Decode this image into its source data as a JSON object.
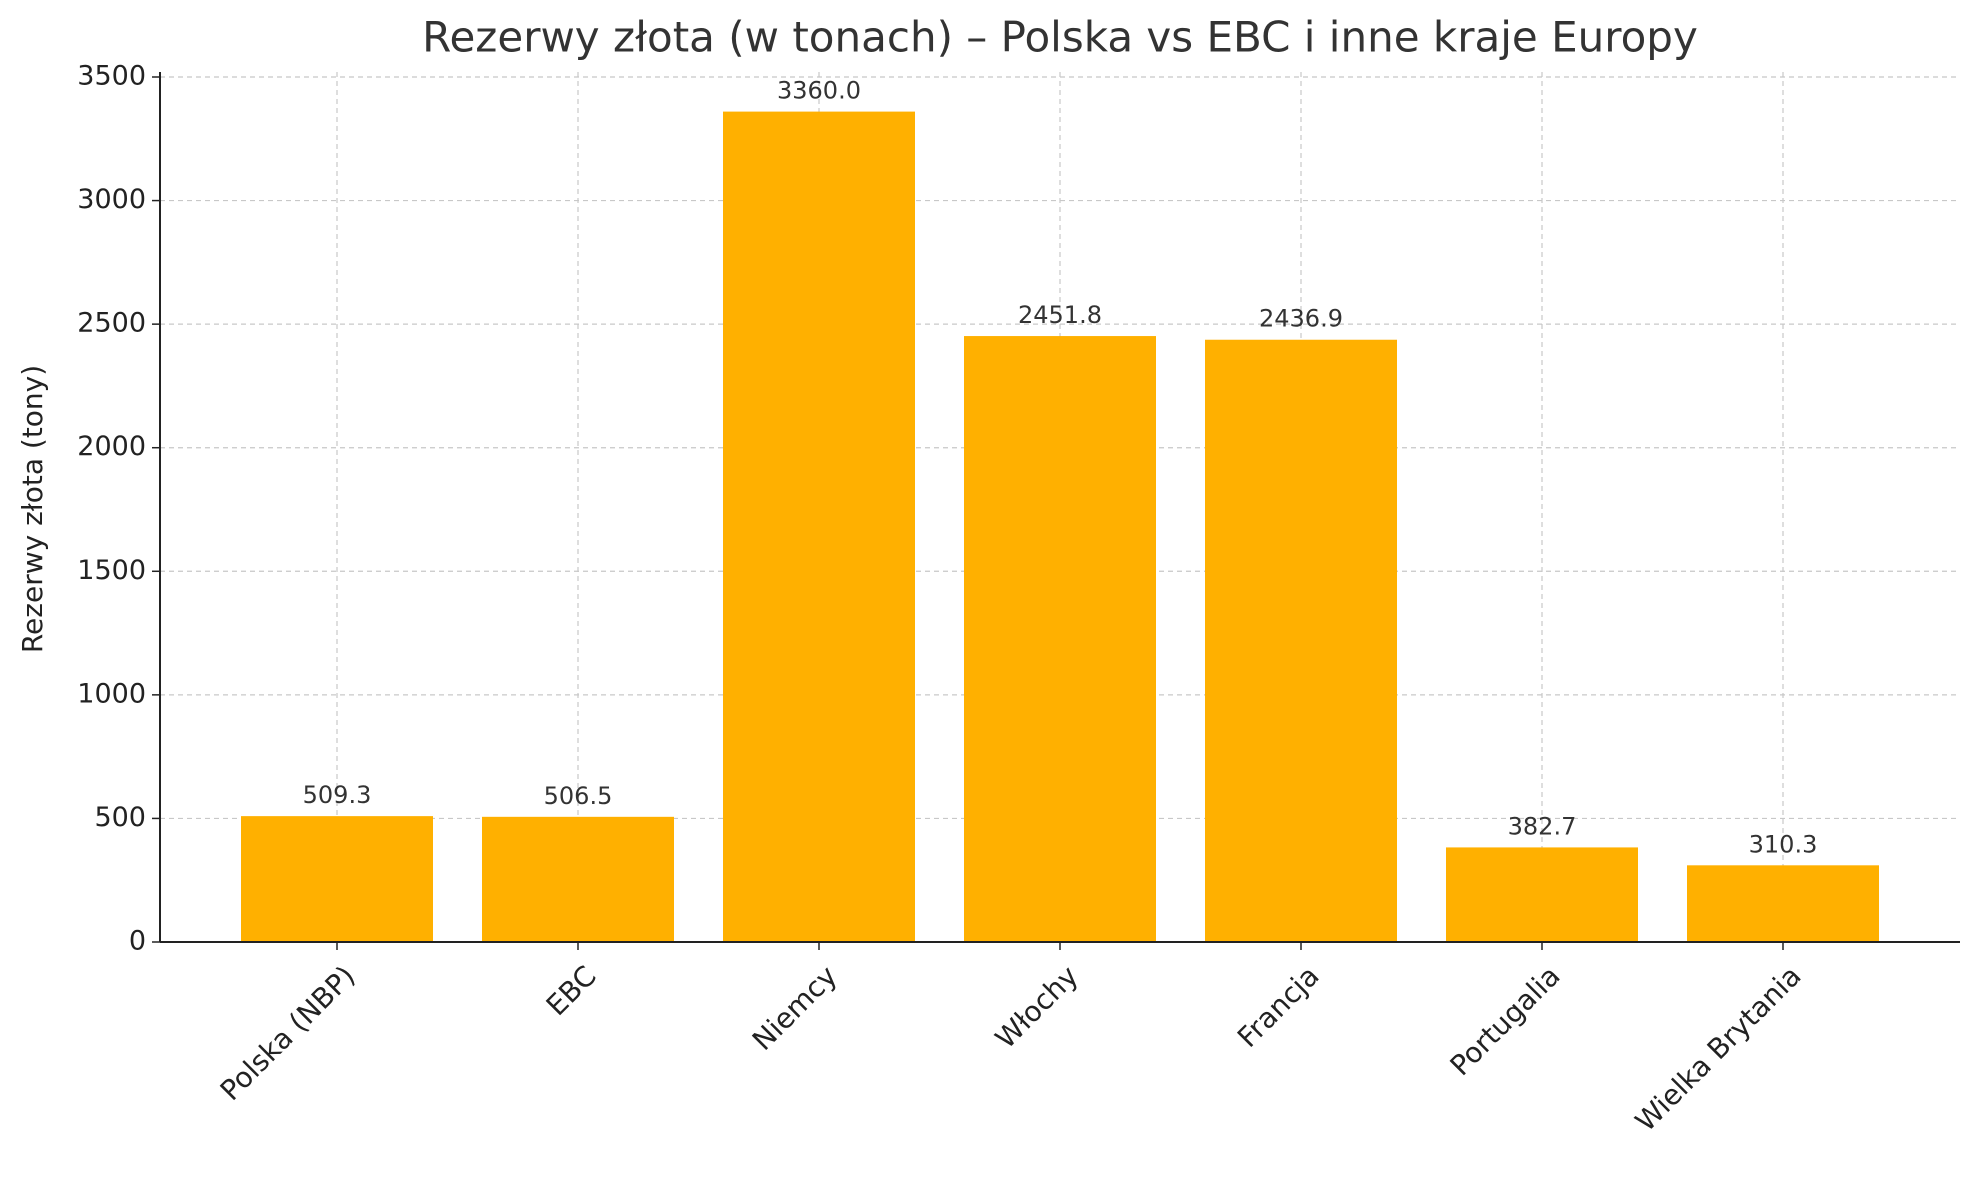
{
  "chart_data": {
    "type": "bar",
    "title": "Rezerwy złota (w tonach) – Polska vs EBC i inne kraje Europy",
    "y_label": "Rezerwy złota (tony)",
    "categories": [
      "Polska (NBP)",
      "EBC",
      "Niemcy",
      "Włochy",
      "Francja",
      "Portugalia",
      "Wielka Brytania"
    ],
    "values": [
      509.3,
      506.5,
      3360,
      2451.8,
      2436.9,
      382.7,
      310.3
    ],
    "value_labels": [
      "509.3",
      "506.5",
      "3360.0",
      "2451.8",
      "2436.9",
      "382.7",
      "310.3"
    ],
    "color": "#ffb000",
    "ylim": [
      0,
      3500
    ],
    "yticks": [
      0,
      500,
      1000,
      1500,
      2000,
      2500,
      3000,
      3500
    ],
    "grid": true
  }
}
